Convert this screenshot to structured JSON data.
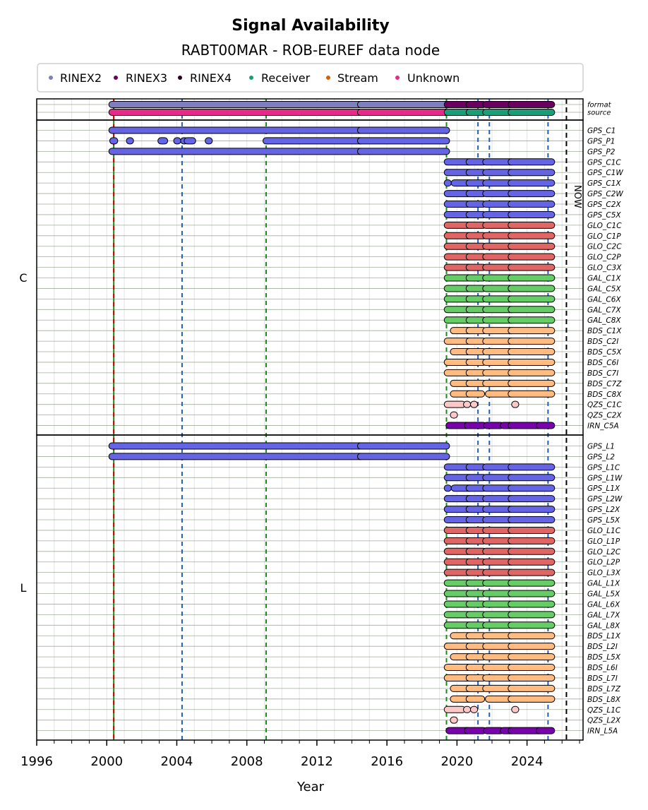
{
  "chart_data": {
    "type": "timeline",
    "title": "Signal Availability",
    "subtitle": "RABT00MAR - ROB-EUREF data node",
    "xlabel": "Year",
    "xlim": [
      1996,
      2027.2
    ],
    "xticks": [
      1996,
      2000,
      2004,
      2008,
      2012,
      2016,
      2020,
      2024
    ],
    "grid": true,
    "legend": {
      "placement": "top",
      "entries": [
        {
          "label": "RINEX2",
          "color": "#7f7fbf"
        },
        {
          "label": "RINEX3",
          "color": "#6a0060"
        },
        {
          "label": "RINEX4",
          "color": "#2a0020"
        },
        {
          "label": "Receiver",
          "color": "#1b9e77"
        },
        {
          "label": "Stream",
          "color": "#d95f02"
        },
        {
          "label": "Unknown",
          "color": "#e7298a"
        }
      ]
    },
    "now_label": "NOW",
    "now_year": 2026.25,
    "vlines": [
      {
        "year": 2000.4,
        "color": "#cc0000",
        "style": "solid",
        "meaning": "red-green"
      },
      {
        "year": 2004.3,
        "color": "#1f5fb4",
        "style": "dashed"
      },
      {
        "year": 2009.1,
        "color": "#1a8a1a",
        "style": "dashed"
      },
      {
        "year": 2019.4,
        "color": "#1a8a1a",
        "style": "dashed"
      },
      {
        "year": 2021.2,
        "color": "#1f5fb4",
        "style": "dashed"
      },
      {
        "year": 2021.85,
        "color": "#1f5fb4",
        "style": "dashed"
      },
      {
        "year": 2025.2,
        "color": "#1f5fb4",
        "style": "dashed"
      }
    ],
    "meta_rows": [
      {
        "label": "format",
        "segments": [
          {
            "start": 2000.3,
            "end": 2014.5,
            "color": "#7f7fbf"
          },
          {
            "start": 2014.5,
            "end": 2019.4,
            "color": "#7f7fbf"
          },
          {
            "start": 2019.45,
            "end": 2020.7,
            "color": "#6a0060"
          },
          {
            "start": 2020.7,
            "end": 2021.5,
            "color": "#6a0060"
          },
          {
            "start": 2021.65,
            "end": 2023.1,
            "color": "#6a0060"
          },
          {
            "start": 2023.1,
            "end": 2025.4,
            "color": "#6a0060"
          }
        ]
      },
      {
        "label": "source",
        "segments": [
          {
            "start": 2000.3,
            "end": 2014.5,
            "color": "#e7298a"
          },
          {
            "start": 2014.5,
            "end": 2019.4,
            "color": "#e7298a"
          },
          {
            "start": 2019.45,
            "end": 2020.7,
            "color": "#1b9e77"
          },
          {
            "start": 2020.7,
            "end": 2021.5,
            "color": "#1b9e77"
          },
          {
            "start": 2021.65,
            "end": 2023.1,
            "color": "#1b9e77"
          },
          {
            "start": 2023.1,
            "end": 2025.4,
            "color": "#1b9e77"
          }
        ]
      }
    ],
    "groups": [
      {
        "name": "C",
        "rows": [
          {
            "label": "GPS_C1",
            "pattern": "legacy"
          },
          {
            "label": "GPS_P1",
            "pattern": "p1"
          },
          {
            "label": "GPS_P2",
            "pattern": "legacy"
          },
          {
            "label": "GPS_C1C",
            "pattern": "modern"
          },
          {
            "label": "GPS_C1W",
            "pattern": "modern"
          },
          {
            "label": "GPS_C1X",
            "pattern": "modern_x"
          },
          {
            "label": "GPS_C2W",
            "pattern": "modern"
          },
          {
            "label": "GPS_C2X",
            "pattern": "modern"
          },
          {
            "label": "GPS_C5X",
            "pattern": "modern"
          },
          {
            "label": "GLO_C1C",
            "pattern": "modern"
          },
          {
            "label": "GLO_C1P",
            "pattern": "modern"
          },
          {
            "label": "GLO_C2C",
            "pattern": "modern"
          },
          {
            "label": "GLO_C2P",
            "pattern": "modern"
          },
          {
            "label": "GLO_C3X",
            "pattern": "modern"
          },
          {
            "label": "GAL_C1X",
            "pattern": "modern"
          },
          {
            "label": "GAL_C5X",
            "pattern": "modern"
          },
          {
            "label": "GAL_C6X",
            "pattern": "modern"
          },
          {
            "label": "GAL_C7X",
            "pattern": "modern"
          },
          {
            "label": "GAL_C8X",
            "pattern": "modern"
          },
          {
            "label": "BDS_C1X",
            "pattern": "bds_late"
          },
          {
            "label": "BDS_C2I",
            "pattern": "modern"
          },
          {
            "label": "BDS_C5X",
            "pattern": "bds_late"
          },
          {
            "label": "BDS_C6I",
            "pattern": "modern"
          },
          {
            "label": "BDS_C7I",
            "pattern": "modern"
          },
          {
            "label": "BDS_C7Z",
            "pattern": "bds_late"
          },
          {
            "label": "BDS_C8X",
            "pattern": "bds_gap"
          },
          {
            "label": "QZS_C1C",
            "pattern": "qzs1"
          },
          {
            "label": "QZS_C2X",
            "pattern": "qzs2"
          },
          {
            "label": "IRN_C5A",
            "pattern": "irn"
          }
        ]
      },
      {
        "name": "L",
        "rows": [
          {
            "label": "GPS_L1",
            "pattern": "legacy"
          },
          {
            "label": "GPS_L2",
            "pattern": "legacy"
          },
          {
            "label": "GPS_L1C",
            "pattern": "modern"
          },
          {
            "label": "GPS_L1W",
            "pattern": "modern"
          },
          {
            "label": "GPS_L1X",
            "pattern": "modern_x"
          },
          {
            "label": "GPS_L2W",
            "pattern": "modern"
          },
          {
            "label": "GPS_L2X",
            "pattern": "modern"
          },
          {
            "label": "GPS_L5X",
            "pattern": "modern"
          },
          {
            "label": "GLO_L1C",
            "pattern": "modern"
          },
          {
            "label": "GLO_L1P",
            "pattern": "modern"
          },
          {
            "label": "GLO_L2C",
            "pattern": "modern"
          },
          {
            "label": "GLO_L2P",
            "pattern": "modern"
          },
          {
            "label": "GLO_L3X",
            "pattern": "modern"
          },
          {
            "label": "GAL_L1X",
            "pattern": "modern"
          },
          {
            "label": "GAL_L5X",
            "pattern": "modern"
          },
          {
            "label": "GAL_L6X",
            "pattern": "modern"
          },
          {
            "label": "GAL_L7X",
            "pattern": "modern"
          },
          {
            "label": "GAL_L8X",
            "pattern": "modern"
          },
          {
            "label": "BDS_L1X",
            "pattern": "bds_late"
          },
          {
            "label": "BDS_L2I",
            "pattern": "modern"
          },
          {
            "label": "BDS_L5X",
            "pattern": "bds_late"
          },
          {
            "label": "BDS_L6I",
            "pattern": "modern"
          },
          {
            "label": "BDS_L7I",
            "pattern": "modern"
          },
          {
            "label": "BDS_L7Z",
            "pattern": "bds_late"
          },
          {
            "label": "BDS_L8X",
            "pattern": "bds_gap"
          },
          {
            "label": "QZS_L1C",
            "pattern": "qzs1"
          },
          {
            "label": "QZS_L2X",
            "pattern": "qzs2"
          },
          {
            "label": "IRN_L5A",
            "pattern": "irn"
          }
        ]
      }
    ],
    "patterns": {
      "legacy": [
        [
          2000.3,
          2014.5
        ],
        [
          2014.5,
          2019.4
        ]
      ],
      "p1": [
        [
          2000.35,
          2000.45
        ],
        [
          2001.3,
          2001.35
        ],
        [
          2003.1,
          2003.3
        ],
        [
          2004.0,
          2004.05
        ],
        [
          2004.4,
          2004.45
        ],
        [
          2004.6,
          2004.9
        ],
        [
          2005.8,
          2005.85
        ],
        [
          2009.1,
          2014.5
        ],
        [
          2014.5,
          2019.4
        ]
      ],
      "modern": [
        [
          2019.45,
          2020.7
        ],
        [
          2020.7,
          2021.5
        ],
        [
          2021.65,
          2023.1
        ],
        [
          2023.1,
          2025.4
        ]
      ],
      "modern_x": [
        [
          2019.45,
          2019.5
        ],
        [
          2019.85,
          2020.7
        ],
        [
          2020.7,
          2021.5
        ],
        [
          2021.65,
          2023.1
        ],
        [
          2023.1,
          2025.4
        ]
      ],
      "bds_late": [
        [
          2019.8,
          2020.7
        ],
        [
          2020.7,
          2021.5
        ],
        [
          2021.65,
          2023.1
        ],
        [
          2023.1,
          2025.4
        ]
      ],
      "bds_gap": [
        [
          2019.8,
          2020.7
        ],
        [
          2020.7,
          2021.4
        ],
        [
          2021.8,
          2023.1
        ],
        [
          2023.1,
          2025.4
        ]
      ],
      "qzs1": [
        [
          2019.45,
          2020.3
        ],
        [
          2020.55,
          2020.6
        ],
        [
          2020.95,
          2021.0
        ],
        [
          2023.3,
          2023.35
        ]
      ],
      "qzs2": [
        [
          2019.8,
          2019.85
        ]
      ],
      "irn": [
        [
          2019.55,
          2020.6
        ],
        [
          2020.6,
          2021.5
        ],
        [
          2021.7,
          2022.5
        ],
        [
          2022.65,
          2023.1
        ],
        [
          2023.1,
          2024.7
        ],
        [
          2024.7,
          2025.4
        ]
      ]
    },
    "system_colors": {
      "GPS": "#6464e4",
      "GLO": "#e06666",
      "GAL": "#66cc66",
      "BDS": "#ffbb80",
      "QZS": "#ffc8c8",
      "IRN": "#7a00b0"
    }
  }
}
